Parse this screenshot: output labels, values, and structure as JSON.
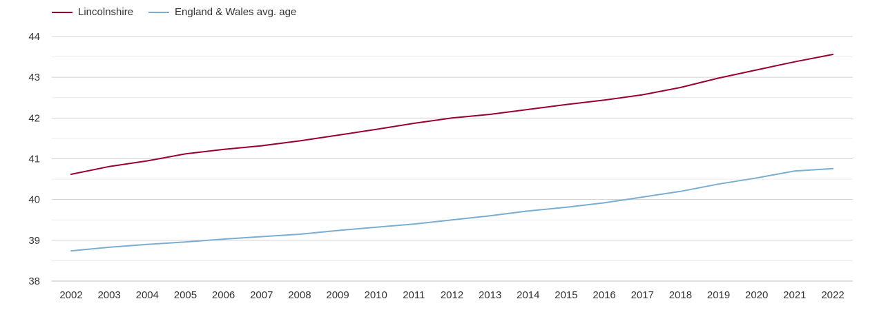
{
  "chart_data": {
    "type": "line",
    "title": "",
    "xlabel": "",
    "ylabel": "",
    "x": [
      "2002",
      "2003",
      "2004",
      "2005",
      "2006",
      "2007",
      "2008",
      "2009",
      "2010",
      "2011",
      "2012",
      "2013",
      "2014",
      "2015",
      "2016",
      "2017",
      "2018",
      "2019",
      "2020",
      "2021",
      "2022"
    ],
    "ylim": [
      38,
      44
    ],
    "yticks": [
      "38",
      "39",
      "40",
      "41",
      "42",
      "43",
      "44"
    ],
    "grid": true,
    "legend": "top-left",
    "series": [
      {
        "name": "Lincolnshire",
        "color": "#99002e",
        "values": [
          40.62,
          40.81,
          40.95,
          41.12,
          41.23,
          41.32,
          41.44,
          41.58,
          41.72,
          41.87,
          42.0,
          42.09,
          42.21,
          42.33,
          42.44,
          42.57,
          42.75,
          42.98,
          43.18,
          43.38,
          43.56
        ]
      },
      {
        "name": "England & Wales avg. age",
        "color": "#7aaed0",
        "values": [
          38.74,
          38.83,
          38.9,
          38.96,
          39.03,
          39.09,
          39.15,
          39.24,
          39.32,
          39.4,
          39.5,
          39.6,
          39.72,
          39.81,
          39.92,
          40.06,
          40.2,
          40.38,
          40.53,
          40.7,
          40.76
        ]
      }
    ]
  }
}
